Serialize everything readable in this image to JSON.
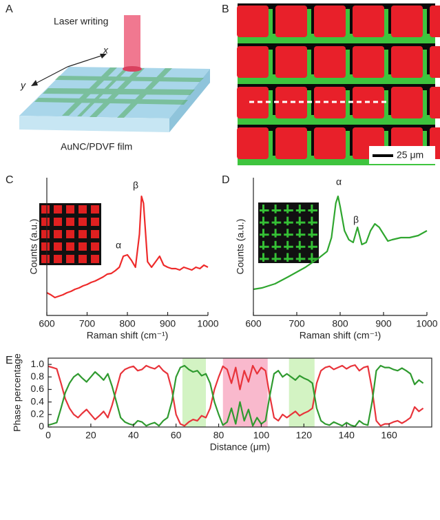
{
  "panel_a": {
    "label": "A",
    "beam_label": "Laser writing",
    "x_axis": "x",
    "y_axis": "y",
    "film_label": "AuNC/PDVF film"
  },
  "panel_b": {
    "label": "B",
    "scale_bar": "25 μm"
  },
  "chart_data": [
    {
      "type": "line",
      "panel": "C",
      "xlabel": "Raman shift (cm⁻¹)",
      "ylabel": "Counts (a.u.)",
      "xlim": [
        600,
        1000
      ],
      "xticks": [
        600,
        700,
        800,
        900,
        1000
      ],
      "ylim": [
        0,
        10
      ],
      "annotations": [
        "α",
        "β"
      ],
      "x": [
        600,
        610,
        620,
        630,
        640,
        650,
        660,
        670,
        680,
        690,
        700,
        710,
        720,
        730,
        740,
        750,
        760,
        770,
        780,
        790,
        800,
        810,
        820,
        830,
        835,
        840,
        850,
        860,
        870,
        880,
        890,
        900,
        910,
        920,
        930,
        940,
        950,
        960,
        970,
        980,
        990,
        1000
      ],
      "series": [
        {
          "color": "#ee2a2a",
          "values": [
            1.65,
            1.5,
            1.3,
            1.4,
            1.5,
            1.65,
            1.75,
            1.9,
            2.0,
            2.15,
            2.25,
            2.4,
            2.5,
            2.65,
            2.8,
            3.0,
            3.05,
            3.25,
            3.5,
            4.3,
            4.4,
            4.0,
            3.5,
            5.9,
            8.65,
            8.15,
            3.9,
            3.5,
            3.9,
            4.3,
            3.65,
            3.5,
            3.4,
            3.4,
            3.3,
            3.5,
            3.4,
            3.3,
            3.5,
            3.4,
            3.65,
            3.5
          ]
        }
      ]
    },
    {
      "type": "line",
      "panel": "D",
      "xlabel": "Raman shift (cm⁻¹)",
      "ylabel": "Counts (a.u.)",
      "xlim": [
        600,
        1000
      ],
      "xticks": [
        600,
        700,
        800,
        900,
        1000
      ],
      "ylim": [
        0,
        10
      ],
      "annotations": [
        "α",
        "β"
      ],
      "x": [
        600,
        620,
        650,
        680,
        700,
        720,
        750,
        770,
        780,
        790,
        795,
        800,
        810,
        820,
        830,
        840,
        850,
        860,
        870,
        880,
        890,
        900,
        910,
        920,
        940,
        960,
        980,
        1000
      ],
      "series": [
        {
          "color": "#2fa62f",
          "values": [
            1.9,
            2.0,
            2.3,
            2.8,
            3.15,
            3.5,
            4.15,
            4.65,
            5.65,
            8.15,
            8.65,
            7.9,
            6.15,
            5.5,
            5.3,
            6.4,
            5.15,
            5.3,
            6.15,
            6.65,
            6.4,
            5.9,
            5.4,
            5.5,
            5.65,
            5.65,
            5.8,
            6.15
          ]
        }
      ]
    },
    {
      "type": "line",
      "panel": "E",
      "xlabel": "Distance (μm)",
      "ylabel": "Phase percentage",
      "xlim": [
        0,
        180
      ],
      "xticks": [
        0,
        20,
        40,
        60,
        80,
        100,
        120,
        140,
        160
      ],
      "ylim": [
        0,
        1.1
      ],
      "yticks": [
        0,
        0.2,
        0.4,
        0.6,
        0.8,
        {
          "value": 1,
          "label": "1.0"
        }
      ],
      "bands": [
        {
          "x": [
            63,
            74
          ],
          "color": "#c8f0b4"
        },
        {
          "x": [
            82,
            103
          ],
          "color": "#f7a8c0"
        },
        {
          "x": [
            113,
            125
          ],
          "color": "#c8f0b4"
        }
      ],
      "x": [
        0,
        2,
        4,
        6,
        8,
        10,
        12,
        14,
        16,
        18,
        20,
        22,
        24,
        26,
        28,
        30,
        32,
        34,
        36,
        38,
        40,
        42,
        44,
        46,
        48,
        50,
        52,
        54,
        56,
        58,
        60,
        62,
        64,
        66,
        68,
        70,
        72,
        74,
        76,
        78,
        80,
        82,
        84,
        86,
        88,
        90,
        92,
        94,
        96,
        98,
        100,
        102,
        104,
        106,
        108,
        110,
        112,
        114,
        116,
        118,
        120,
        122,
        124,
        126,
        128,
        130,
        132,
        134,
        136,
        138,
        140,
        142,
        144,
        146,
        148,
        150,
        152,
        154,
        156,
        158,
        160,
        162,
        164,
        166,
        168,
        170,
        172,
        174,
        176
      ],
      "series": [
        {
          "color": "#e8333a",
          "values": [
            0.97,
            0.95,
            0.93,
            0.7,
            0.45,
            0.3,
            0.2,
            0.15,
            0.22,
            0.28,
            0.2,
            0.12,
            0.18,
            0.25,
            0.15,
            0.35,
            0.6,
            0.85,
            0.92,
            0.95,
            0.97,
            0.9,
            0.92,
            0.98,
            0.95,
            0.93,
            0.98,
            0.9,
            0.85,
            0.6,
            0.2,
            0.05,
            0.02,
            0.08,
            0.12,
            0.1,
            0.18,
            0.15,
            0.3,
            0.6,
            0.8,
            0.97,
            0.92,
            0.7,
            0.95,
            0.6,
            0.9,
            0.72,
            0.98,
            0.85,
            0.95,
            0.9,
            0.5,
            0.15,
            0.1,
            0.2,
            0.15,
            0.2,
            0.25,
            0.18,
            0.22,
            0.25,
            0.3,
            0.7,
            0.9,
            0.95,
            0.97,
            0.92,
            0.95,
            0.98,
            0.93,
            0.97,
            0.99,
            0.9,
            0.95,
            0.97,
            0.6,
            0.1,
            0.02,
            0.05,
            0.05,
            0.08,
            0.1,
            0.06,
            0.1,
            0.15,
            0.32,
            0.25,
            0.3
          ]
        },
        {
          "color": "#2f9a2f",
          "values": [
            0.03,
            0.05,
            0.07,
            0.3,
            0.55,
            0.7,
            0.8,
            0.85,
            0.78,
            0.72,
            0.8,
            0.88,
            0.82,
            0.75,
            0.85,
            0.65,
            0.4,
            0.15,
            0.08,
            0.05,
            0.03,
            0.1,
            0.08,
            0.02,
            0.05,
            0.07,
            0.02,
            0.1,
            0.15,
            0.4,
            0.8,
            0.95,
            0.98,
            0.92,
            0.88,
            0.9,
            0.82,
            0.85,
            0.7,
            0.4,
            0.2,
            0.03,
            0.08,
            0.3,
            0.05,
            0.4,
            0.1,
            0.28,
            0.02,
            0.15,
            0.05,
            0.1,
            0.5,
            0.85,
            0.9,
            0.8,
            0.85,
            0.8,
            0.75,
            0.82,
            0.78,
            0.75,
            0.7,
            0.3,
            0.1,
            0.05,
            0.03,
            0.08,
            0.05,
            0.02,
            0.07,
            0.03,
            0.01,
            0.1,
            0.05,
            0.03,
            0.4,
            0.9,
            0.98,
            0.95,
            0.95,
            0.92,
            0.9,
            0.94,
            0.9,
            0.85,
            0.68,
            0.75,
            0.7
          ]
        }
      ]
    }
  ]
}
